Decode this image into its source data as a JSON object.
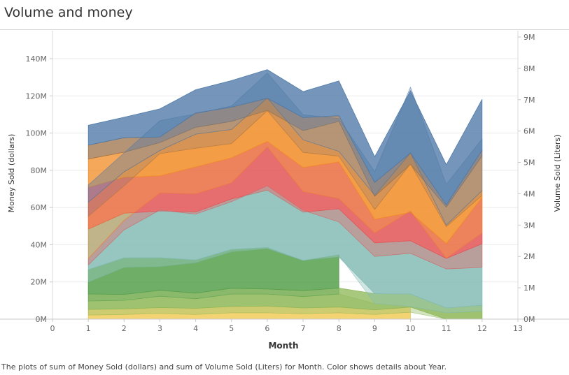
{
  "title": "Volume and money",
  "caption": "The plots of sum of Money Sold (dollars) and sum of Volume Sold (Liters) for Month.  Color shows details about Year.",
  "chart_data": {
    "type": "area",
    "stacked": true,
    "dual_axis": true,
    "title": "Volume and money",
    "xlabel": "Month",
    "ylabel_left": "Money Sold (dollars)",
    "ylabel_right": "Volume Sold (Liters)",
    "xlim": [
      0,
      13
    ],
    "x_ticks": [
      0,
      1,
      2,
      3,
      4,
      5,
      6,
      7,
      8,
      9,
      10,
      11,
      12,
      13
    ],
    "ylim_left": [
      0,
      155
    ],
    "yticks_left": [
      0,
      20,
      40,
      60,
      80,
      100,
      120,
      140
    ],
    "ytick_labels_left": [
      "0M",
      "20M",
      "40M",
      "60M",
      "80M",
      "100M",
      "120M",
      "140M"
    ],
    "ylim_right": [
      0,
      9.2
    ],
    "yticks_right": [
      0,
      1,
      2,
      3,
      4,
      5,
      6,
      7,
      8,
      9
    ],
    "ytick_labels_right": [
      "0M",
      "1M",
      "2M",
      "3M",
      "4M",
      "5M",
      "6M",
      "7M",
      "8M",
      "9M"
    ],
    "grid": "horizontal",
    "x": [
      1,
      2,
      3,
      4,
      5,
      6,
      7,
      8,
      9,
      10,
      11,
      12
    ],
    "money_series": [
      {
        "color": "#f2cd5c",
        "values": [
          5.2,
          5.5,
          6.2,
          5.8,
          6.8,
          7.0,
          6.0,
          6.5,
          5.0,
          6.5,
          null,
          null
        ]
      },
      {
        "color": "#8fb85a",
        "values": [
          8.3,
          7.8,
          9.3,
          8.2,
          9.8,
          9.2,
          9.3,
          10.2,
          8.7,
          7.0,
          6.0,
          7.5
        ]
      },
      {
        "color": "#59a14f",
        "values": [
          13.1,
          19.6,
          17.5,
          17.8,
          20.9,
          22.3,
          16.2,
          16.7,
          null,
          null,
          null,
          null
        ]
      },
      {
        "color": "#86bcb6",
        "values": [
          21.8,
          24.0,
          25.1,
          25.8,
          27.1,
          30.8,
          26.0,
          25.9,
          27.3,
          28.6,
          26.6,
          33.0
        ]
      },
      {
        "color": "#e15759",
        "values": [
          22.3,
          19.3,
          18.9,
          24.2,
          22.1,
          26.2,
          24.0,
          25.2,
          12.7,
          15.2,
          8.0,
          24.9
        ]
      },
      {
        "color": "#f28e2b",
        "values": [
          15.4,
          13.5,
          17.9,
          21.3,
          19.6,
          16.7,
          19.8,
          21.8,
          12.3,
          25.8,
          19.6,
          22.3
        ]
      },
      {
        "color": "#a0764e",
        "values": [
          7.4,
          7.8,
          3.0,
          7.7,
          7.6,
          6.5,
          7.0,
          3.0,
          7.5,
          6.2,
          1.2,
          3.1
        ]
      },
      {
        "color": "#4e79a7",
        "values": [
          10.7,
          11.0,
          15.1,
          12.5,
          14.3,
          15.4,
          14.0,
          18.7,
          13.8,
          33.4,
          21.6,
          27.3
        ]
      }
    ],
    "volume_series": [
      {
        "color": "#f2cd5c",
        "values": [
          0.13,
          0.15,
          0.18,
          0.15,
          0.2,
          0.2,
          0.17,
          0.2,
          0.15,
          0.22,
          null,
          null
        ]
      },
      {
        "color": "#8fb85a",
        "values": [
          0.45,
          0.45,
          0.55,
          0.5,
          0.6,
          0.6,
          0.55,
          0.6,
          0.35,
          0.18,
          0.2,
          0.25
        ]
      },
      {
        "color": "#59a14f",
        "values": [
          0.6,
          1.05,
          0.95,
          1.15,
          1.35,
          1.45,
          1.15,
          1.25,
          null,
          null,
          null,
          null
        ]
      },
      {
        "color": "#86bcb6",
        "values": [
          0.55,
          1.2,
          1.8,
          1.55,
          1.6,
          2.0,
          1.6,
          1.05,
          1.5,
          1.7,
          1.4,
          1.4
        ]
      },
      {
        "color": "#e15759",
        "values": [
          0.2,
          0.3,
          0.55,
          0.65,
          0.6,
          1.25,
          0.6,
          0.75,
          0.75,
          1.35,
          0.35,
          1.1
        ]
      },
      {
        "color": "#f28e2b",
        "values": [
          1.35,
          1.1,
          1.25,
          1.45,
          1.25,
          1.15,
          1.25,
          1.35,
          0.75,
          1.5,
          1.0,
          1.2
        ]
      },
      {
        "color": "#a0764e",
        "values": [
          0.45,
          0.45,
          0.1,
          0.45,
          0.45,
          0.4,
          0.4,
          0.15,
          0.45,
          0.35,
          0.05,
          0.15
        ]
      },
      {
        "color": "#4e79a7",
        "values": [
          0.55,
          0.6,
          0.95,
          0.65,
          0.75,
          0.8,
          0.8,
          1.05,
          0.75,
          2.1,
          1.3,
          1.65
        ]
      }
    ]
  }
}
